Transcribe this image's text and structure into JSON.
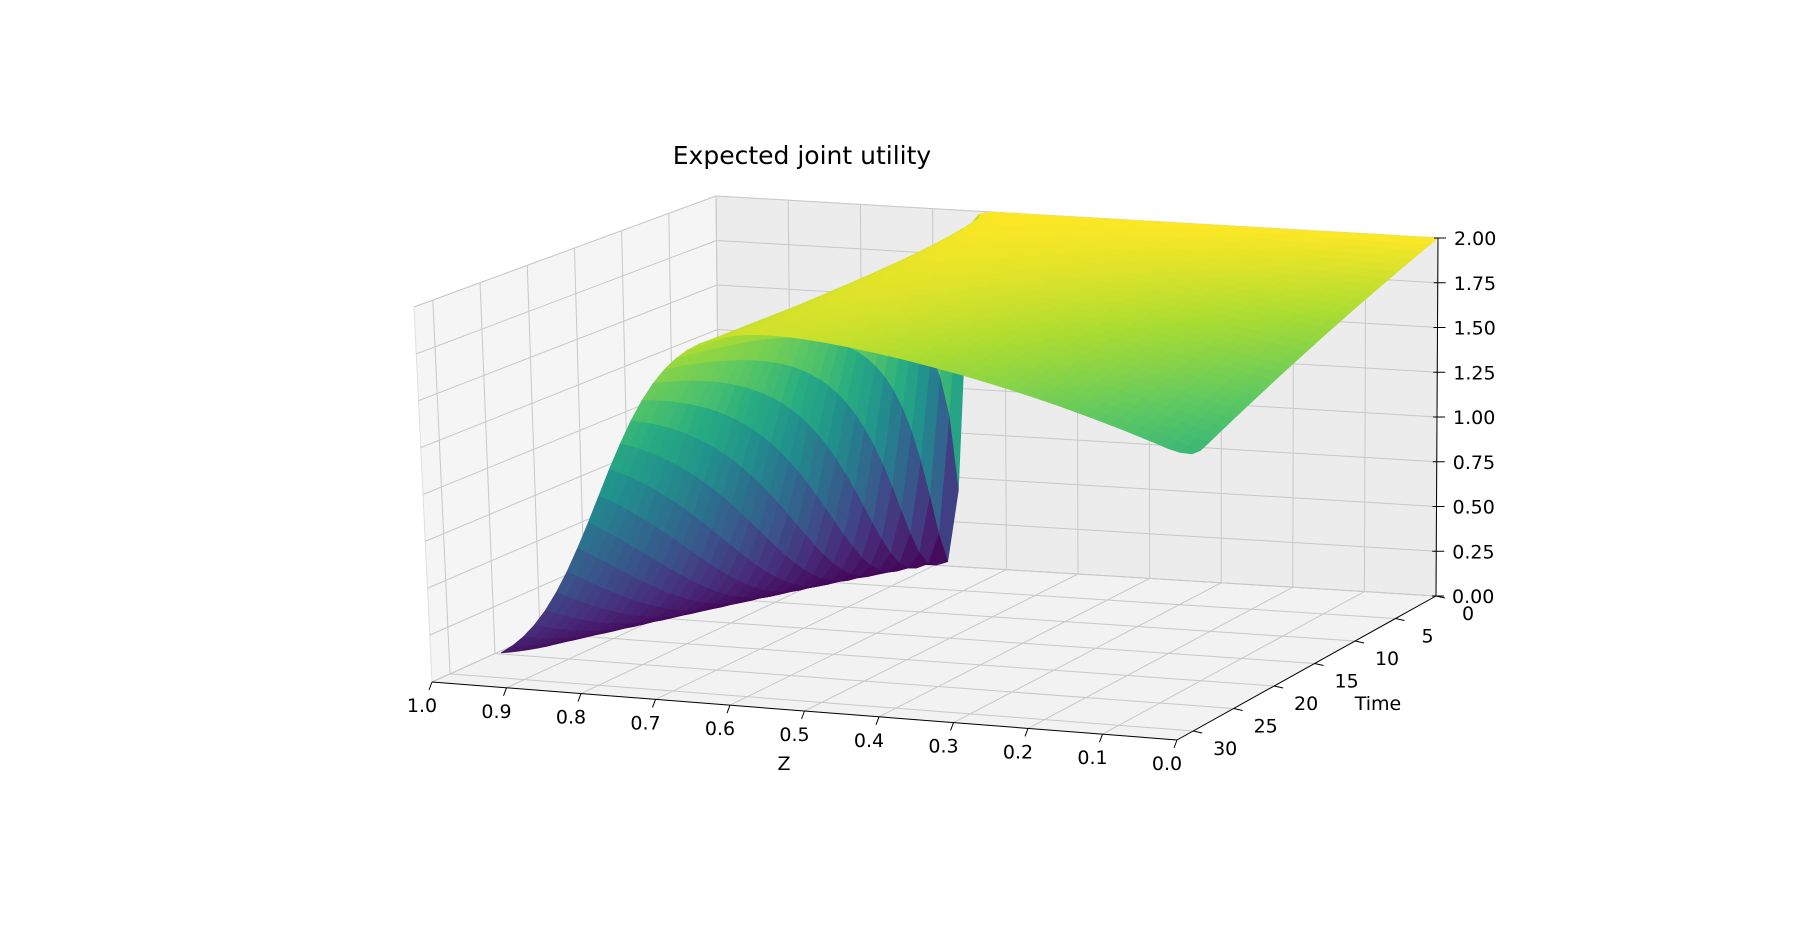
{
  "chart_data": {
    "type": "surface3d",
    "title": "Expected joint utility",
    "xlabel": "Z",
    "ylabel": "Time",
    "zlabel": "",
    "xlim": [
      1.0,
      0.0
    ],
    "ylim": [
      0,
      32
    ],
    "zlim": [
      0.0,
      2.0
    ],
    "x_ticks": [
      "1.0",
      "0.9",
      "0.8",
      "0.7",
      "0.6",
      "0.5",
      "0.4",
      "0.3",
      "0.2",
      "0.1",
      "0.0"
    ],
    "y_ticks": [
      "0",
      "5",
      "10",
      "15",
      "20",
      "25",
      "30"
    ],
    "z_ticks": [
      "0.00",
      "0.25",
      "0.50",
      "0.75",
      "1.00",
      "1.25",
      "1.50",
      "1.75",
      "2.00"
    ],
    "colormap": "viridis",
    "surface_samples": {
      "z_values": [
        0.0,
        0.1,
        0.2,
        0.3,
        0.4,
        0.5,
        0.6,
        0.7,
        0.8,
        0.9,
        1.0
      ],
      "at_time_0": [
        2.0,
        2.0,
        2.0,
        2.0,
        2.0,
        2.0,
        2.0,
        2.0,
        0.0,
        0.0,
        0.0
      ],
      "at_time_30": [
        1.4,
        1.5,
        1.55,
        1.6,
        1.6,
        1.55,
        1.2,
        0.55,
        0.05,
        0.0,
        0.0
      ]
    }
  }
}
